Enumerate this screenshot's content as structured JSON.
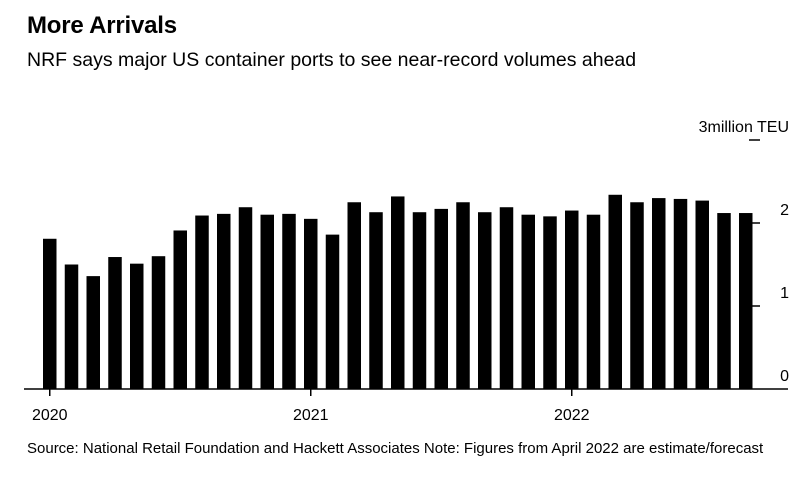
{
  "chart_data": {
    "type": "bar",
    "title": "More Arrivals",
    "subtitle": "NRF says major US container ports to see near-record volumes ahead",
    "ylabel": "million TEU",
    "y_ticks": [
      {
        "value": 0,
        "label": "0"
      },
      {
        "value": 1,
        "label": "1"
      },
      {
        "value": 2,
        "label": "2"
      },
      {
        "value": 3,
        "label": "3million TEU"
      }
    ],
    "ylim": [
      0,
      3
    ],
    "x_ticks": [
      {
        "label": "2020",
        "index": 0
      },
      {
        "label": "2021",
        "index": 12
      },
      {
        "label": "2022",
        "index": 24
      }
    ],
    "categories": [
      "Jan 2020",
      "Feb 2020",
      "Mar 2020",
      "Apr 2020",
      "May 2020",
      "Jun 2020",
      "Jul 2020",
      "Aug 2020",
      "Sep 2020",
      "Oct 2020",
      "Nov 2020",
      "Dec 2020",
      "Jan 2021",
      "Feb 2021",
      "Mar 2021",
      "Apr 2021",
      "May 2021",
      "Jun 2021",
      "Jul 2021",
      "Aug 2021",
      "Sep 2021",
      "Oct 2021",
      "Nov 2021",
      "Dec 2021",
      "Jan 2022",
      "Feb 2022",
      "Mar 2022",
      "Apr 2022",
      "May 2022",
      "Jun 2022",
      "Jul 2022",
      "Aug 2022",
      "Sep 2022"
    ],
    "values": [
      1.81,
      1.5,
      1.36,
      1.59,
      1.51,
      1.6,
      1.91,
      2.09,
      2.11,
      2.19,
      2.1,
      2.11,
      2.05,
      1.86,
      2.25,
      2.13,
      2.32,
      2.13,
      2.17,
      2.25,
      2.13,
      2.19,
      2.1,
      2.08,
      2.15,
      2.1,
      2.34,
      2.25,
      2.3,
      2.29,
      2.27,
      2.12,
      2.12
    ]
  },
  "source_text": "Source: National Retail Foundation and Hackett Associates Note: Figures from April 2022 are estimate/forecast"
}
